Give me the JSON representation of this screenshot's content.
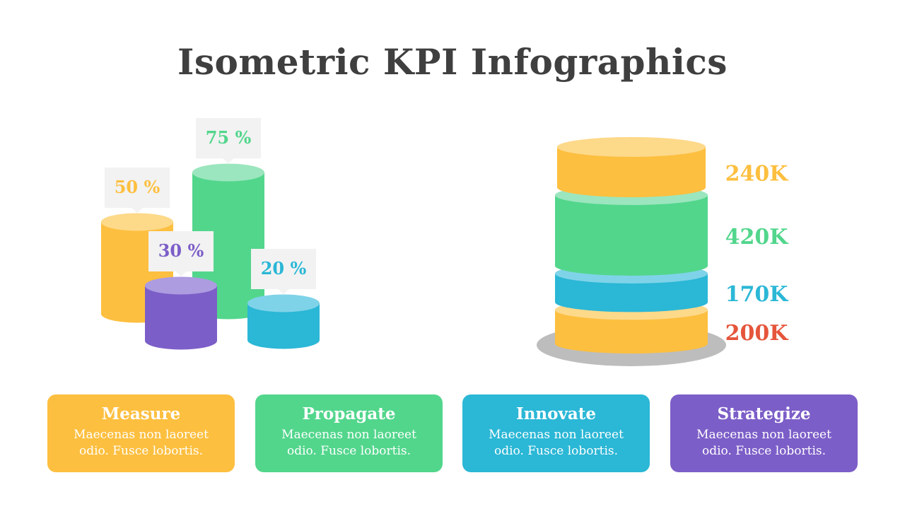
{
  "title": "Isometric KPI Infographics",
  "colors": {
    "yellow": "#FDBF3F",
    "yellow_top": "#FDD98A",
    "green": "#52D68C",
    "green_top": "#9BE6BE",
    "cyan": "#2BB7D6",
    "cyan_top": "#7FD3E8",
    "purple": "#7C5EC8",
    "purple_top": "#AD9CE0",
    "red": "#E5553B",
    "callout": "#F2F2F2",
    "base": "#BDBDBD"
  },
  "chart_data": [
    {
      "type": "bar",
      "categories": [
        "yellow",
        "green",
        "purple",
        "cyan"
      ],
      "values": [
        50,
        75,
        30,
        20
      ],
      "labels": [
        "50 %",
        "75 %",
        "30 %",
        "20 %"
      ],
      "colors": [
        "yellow",
        "green",
        "purple",
        "cyan"
      ]
    },
    {
      "type": "bar",
      "stacked": true,
      "values_bottom_to_top": [
        200,
        170,
        420,
        240
      ],
      "labels_bottom_to_top": [
        "200K",
        "170K",
        "420K",
        "240K"
      ],
      "colors_bottom_to_top": [
        "yellow",
        "cyan",
        "green",
        "yellow"
      ],
      "label_colors_bottom_to_top": [
        "red",
        "cyan",
        "green",
        "yellow"
      ]
    }
  ],
  "cards": [
    {
      "title": "Measure",
      "text": "Maecenas non laoreet odio. Fusce lobortis.",
      "color": "#FDBF3F"
    },
    {
      "title": "Propagate",
      "text": "Maecenas non laoreet odio. Fusce lobortis.",
      "color": "#52D68C"
    },
    {
      "title": "Innovate",
      "text": "Maecenas non laoreet odio. Fusce lobortis.",
      "color": "#2BB7D6"
    },
    {
      "title": "Strategize",
      "text": "Maecenas non laoreet odio. Fusce lobortis.",
      "color": "#7C5EC8"
    }
  ]
}
